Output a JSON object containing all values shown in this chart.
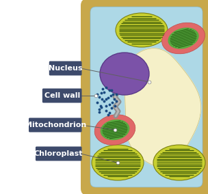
{
  "bg_color": "#ffffff",
  "cell_wall_color": "#c8a84b",
  "cell_mem_color": "#add8e6",
  "vacuole_color": "#f5f0c8",
  "nucleus_color": "#7b52a8",
  "nucleus_outline": "#5a3a88",
  "chloroplast_outer": "#c8d840",
  "chloroplast_mid": "#a0b820",
  "chloroplast_stripe": "#4a6010",
  "mito_outer": "#e06868",
  "mito_inner": "#5aaa40",
  "mito_stripe": "#2a6818",
  "ribosome_color": "#1a4a80",
  "er_color": "#888888",
  "label_bg": "#3d4a6b",
  "label_text": "#ffffff",
  "label_fontsize": 8.0,
  "labels": [
    "Nucleus",
    "Cell wall",
    "Mitochondrion",
    "Chloroplast"
  ]
}
